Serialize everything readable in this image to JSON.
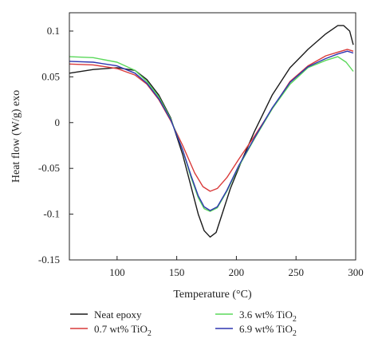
{
  "chart_data": {
    "type": "line",
    "title": "",
    "xlabel": "Temperature (°C)",
    "ylabel": "Heat flow (W/g) exo",
    "xlim": [
      60,
      300
    ],
    "ylim": [
      -0.15,
      0.12
    ],
    "x_ticks": [
      {
        "value": 100,
        "label": "100"
      },
      {
        "value": 150,
        "label": "150"
      },
      {
        "value": 200,
        "label": "200"
      },
      {
        "value": 250,
        "label": "250"
      },
      {
        "value": 300,
        "label": "300"
      }
    ],
    "y_ticks": [
      {
        "value": 0.1,
        "label": "0.1"
      },
      {
        "value": 0.05,
        "label": "0.05"
      },
      {
        "value": 0,
        "label": "0"
      },
      {
        "value": -0.05,
        "label": "-0.05"
      },
      {
        "value": -0.1,
        "label": "-0.1"
      },
      {
        "value": -0.15,
        "label": "-0.15"
      }
    ],
    "grid": false,
    "legend_position": "bottom",
    "series": [
      {
        "name": "Neat epoxy",
        "legend_main": "Neat epoxy",
        "legend_sub": "",
        "color": "#1a1a1a",
        "points": [
          [
            60,
            0.054
          ],
          [
            80,
            0.058
          ],
          [
            100,
            0.06
          ],
          [
            115,
            0.057
          ],
          [
            125,
            0.047
          ],
          [
            135,
            0.03
          ],
          [
            145,
            0.005
          ],
          [
            155,
            -0.035
          ],
          [
            162,
            -0.07
          ],
          [
            168,
            -0.1
          ],
          [
            173,
            -0.118
          ],
          [
            178,
            -0.125
          ],
          [
            183,
            -0.12
          ],
          [
            188,
            -0.1
          ],
          [
            195,
            -0.072
          ],
          [
            205,
            -0.04
          ],
          [
            215,
            -0.01
          ],
          [
            230,
            0.03
          ],
          [
            245,
            0.06
          ],
          [
            260,
            0.08
          ],
          [
            275,
            0.097
          ],
          [
            285,
            0.106
          ],
          [
            290,
            0.106
          ],
          [
            295,
            0.1
          ],
          [
            298,
            0.085
          ]
        ]
      },
      {
        "name": "0.7 wt% TiO2",
        "legend_main": "0.7 wt% TiO",
        "legend_sub": "2",
        "color": "#d93a3a",
        "points": [
          [
            60,
            0.064
          ],
          [
            80,
            0.063
          ],
          [
            100,
            0.059
          ],
          [
            115,
            0.052
          ],
          [
            125,
            0.042
          ],
          [
            135,
            0.025
          ],
          [
            145,
            0.002
          ],
          [
            155,
            -0.025
          ],
          [
            165,
            -0.055
          ],
          [
            172,
            -0.07
          ],
          [
            178,
            -0.075
          ],
          [
            184,
            -0.072
          ],
          [
            192,
            -0.06
          ],
          [
            202,
            -0.04
          ],
          [
            215,
            -0.015
          ],
          [
            230,
            0.015
          ],
          [
            245,
            0.045
          ],
          [
            260,
            0.062
          ],
          [
            275,
            0.073
          ],
          [
            285,
            0.077
          ],
          [
            293,
            0.08
          ],
          [
            298,
            0.078
          ]
        ]
      },
      {
        "name": "3.6 wt% TiO2",
        "legend_main": "3.6 wt% TiO",
        "legend_sub": "2",
        "color": "#5ad85a",
        "points": [
          [
            60,
            0.072
          ],
          [
            80,
            0.071
          ],
          [
            100,
            0.066
          ],
          [
            115,
            0.057
          ],
          [
            125,
            0.045
          ],
          [
            135,
            0.028
          ],
          [
            145,
            0.004
          ],
          [
            155,
            -0.03
          ],
          [
            162,
            -0.06
          ],
          [
            168,
            -0.082
          ],
          [
            173,
            -0.094
          ],
          [
            178,
            -0.097
          ],
          [
            184,
            -0.093
          ],
          [
            192,
            -0.075
          ],
          [
            202,
            -0.048
          ],
          [
            215,
            -0.018
          ],
          [
            230,
            0.015
          ],
          [
            245,
            0.042
          ],
          [
            260,
            0.06
          ],
          [
            275,
            0.068
          ],
          [
            285,
            0.072
          ],
          [
            292,
            0.066
          ],
          [
            298,
            0.056
          ]
        ]
      },
      {
        "name": "6.9 wt% TiO2",
        "legend_main": "6.9 wt% TiO",
        "legend_sub": "2",
        "color": "#2f35b0",
        "points": [
          [
            60,
            0.067
          ],
          [
            80,
            0.066
          ],
          [
            100,
            0.062
          ],
          [
            115,
            0.054
          ],
          [
            125,
            0.043
          ],
          [
            135,
            0.026
          ],
          [
            145,
            0.003
          ],
          [
            155,
            -0.03
          ],
          [
            162,
            -0.058
          ],
          [
            168,
            -0.08
          ],
          [
            173,
            -0.092
          ],
          [
            178,
            -0.096
          ],
          [
            184,
            -0.092
          ],
          [
            192,
            -0.074
          ],
          [
            202,
            -0.047
          ],
          [
            215,
            -0.017
          ],
          [
            230,
            0.016
          ],
          [
            245,
            0.044
          ],
          [
            260,
            0.061
          ],
          [
            275,
            0.07
          ],
          [
            285,
            0.075
          ],
          [
            293,
            0.078
          ],
          [
            298,
            0.076
          ]
        ]
      }
    ]
  }
}
